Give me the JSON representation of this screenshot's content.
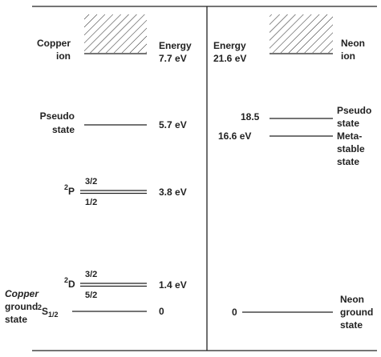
{
  "copper": {
    "ion": {
      "label": [
        "Copper",
        "ion"
      ],
      "energy_heading": "Energy",
      "energy": "7.7 eV"
    },
    "pseudo": {
      "label": [
        "Pseudo",
        "state"
      ],
      "energy": "5.7 eV"
    },
    "p_level": {
      "multiplicity": "2",
      "term": "P",
      "upper": "3/2",
      "lower": "1/2",
      "energy": "3.8 eV"
    },
    "d_level": {
      "multiplicity": "2",
      "term": "D",
      "upper": "3/2",
      "lower": "5/2",
      "energy": "1.4 eV"
    },
    "ground": {
      "label": [
        "Copper",
        "ground",
        "state"
      ],
      "multiplicity": "2",
      "term": "S",
      "subscript": "1/2",
      "energy": "0"
    }
  },
  "neon": {
    "ion": {
      "energy_heading": "Energy",
      "energy": "21.6 eV",
      "label": [
        "Neon",
        "ion"
      ]
    },
    "pseudo": {
      "energy": "18.5",
      "label": [
        "Pseudo",
        "state"
      ]
    },
    "metastable": {
      "energy": "16.6 eV",
      "label": [
        "Meta-",
        "stable",
        "state"
      ]
    },
    "ground": {
      "energy": "0",
      "label": [
        "Neon",
        "ground",
        "state"
      ]
    }
  }
}
